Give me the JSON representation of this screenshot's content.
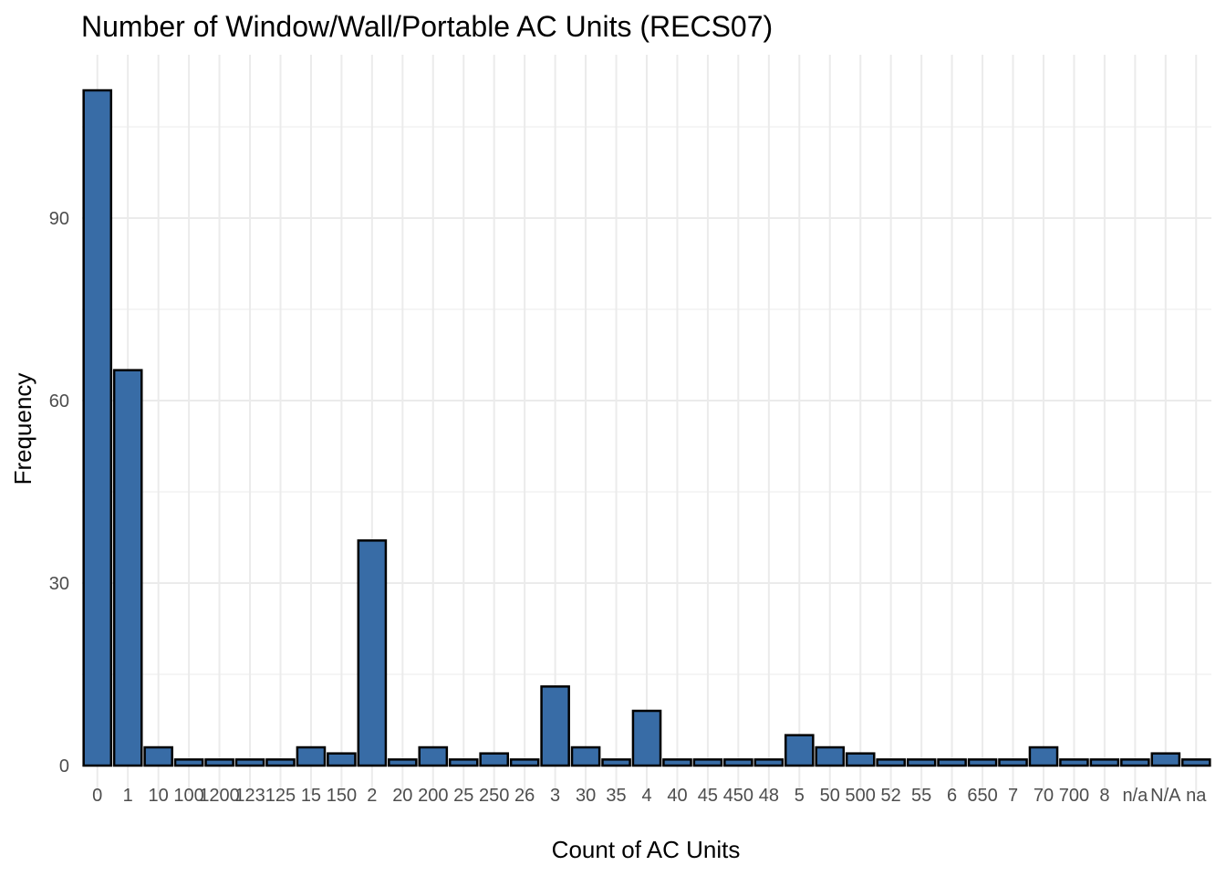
{
  "chart_data": {
    "type": "bar",
    "title": "Number of Window/Wall/Portable AC Units (RECS07)",
    "xlabel": "Count of AC Units",
    "ylabel": "Frequency",
    "categories": [
      "0",
      "1",
      "10",
      "100",
      "1200",
      "123",
      "125",
      "15",
      "150",
      "2",
      "20",
      "200",
      "25",
      "250",
      "26",
      "3",
      "30",
      "35",
      "4",
      "40",
      "45",
      "450",
      "48",
      "5",
      "50",
      "500",
      "52",
      "55",
      "6",
      "650",
      "7",
      "70",
      "700",
      "8",
      "n/a",
      "N/A",
      "na"
    ],
    "tick_labels": [
      "0",
      "1",
      "10",
      "100",
      "1200",
      "123",
      "125",
      "15",
      "150",
      "2",
      "20",
      "200",
      "25",
      "250",
      "26",
      "3",
      "30",
      "35",
      "4",
      "40",
      "45",
      "450",
      "48",
      "5",
      "50",
      "500",
      "52",
      "55",
      "6",
      "650",
      "7",
      "70",
      "700",
      "8",
      "n/a",
      "N/A",
      "na"
    ],
    "values": [
      111,
      65,
      3,
      1,
      1,
      1,
      1,
      3,
      2,
      37,
      1,
      3,
      1,
      2,
      1,
      13,
      3,
      1,
      9,
      1,
      1,
      1,
      1,
      5,
      3,
      2,
      1,
      1,
      1,
      1,
      1,
      3,
      1,
      1,
      1,
      2,
      1
    ],
    "y_ticks": [
      0,
      30,
      60,
      90
    ],
    "ylim": [
      0,
      116.6
    ],
    "bar_fill": "#386CA6",
    "bar_stroke": "#000000",
    "grid": true,
    "legend": "none"
  }
}
